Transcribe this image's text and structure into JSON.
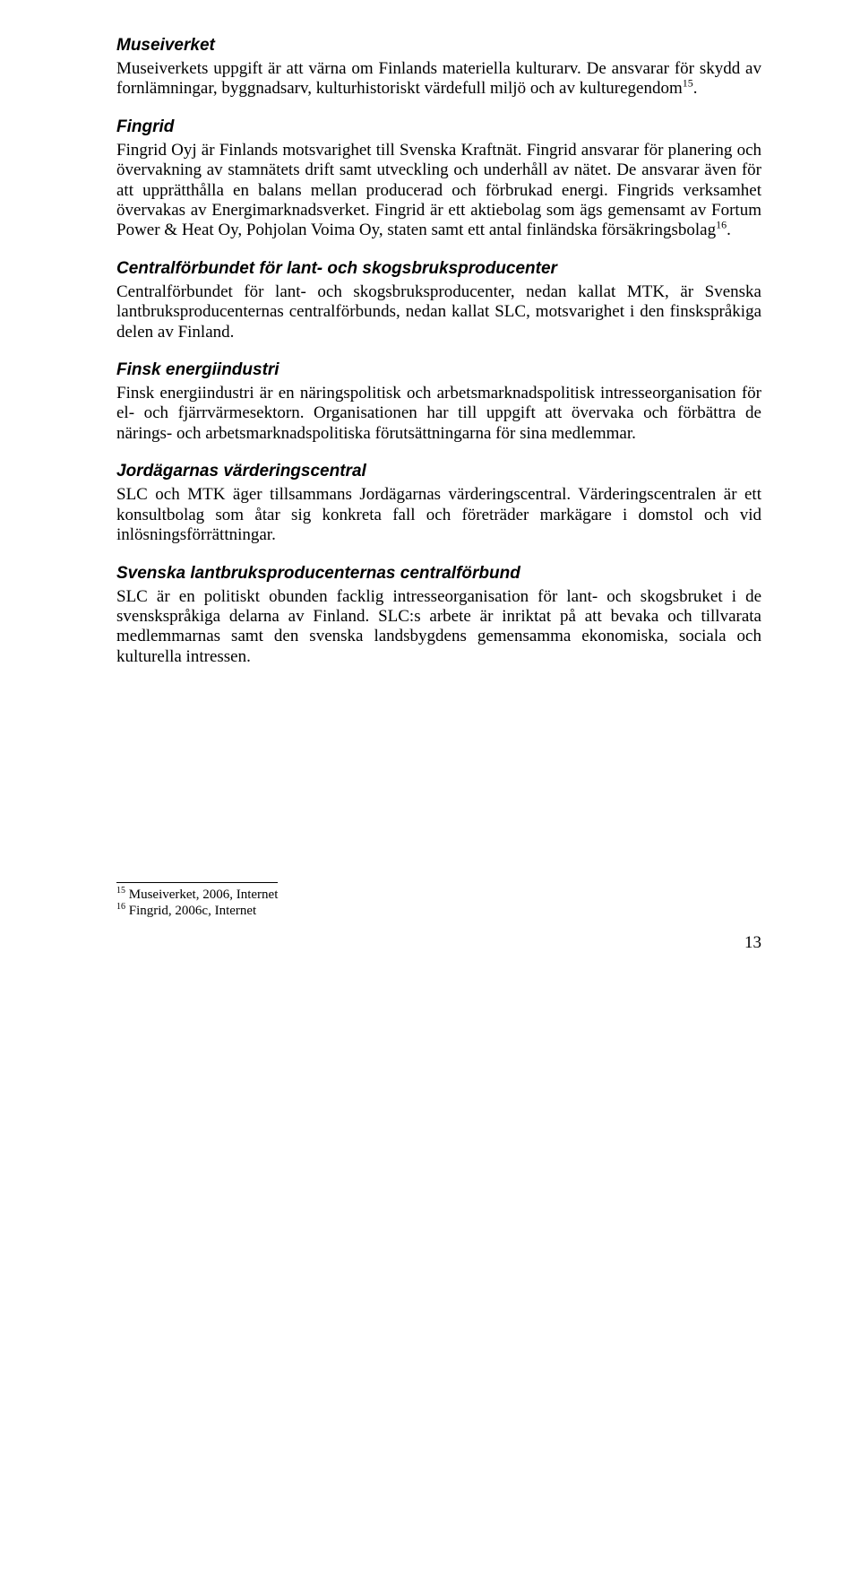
{
  "sections": [
    {
      "heading": "Museiverket",
      "body": "Museiverkets uppgift är att värna om Finlands materiella kulturarv. De ansvarar för skydd av fornlämningar, byggnadsarv, kulturhistoriskt värdefull miljö och av kulturegendom",
      "sup": "15",
      "body_tail": "."
    },
    {
      "heading": "Fingrid",
      "body": "Fingrid Oyj är Finlands motsvarighet till Svenska Kraftnät. Fingrid ansvarar för planering och övervakning av stamnätets drift samt utveckling och underhåll av nätet. De ansvarar även för att upprätthålla en balans mellan producerad och förbrukad energi. Fingrids verksamhet övervakas av Energimarknadsverket. Fingrid är ett aktiebolag som ägs gemensamt av Fortum Power & Heat Oy, Pohjolan Voima Oy, staten samt ett antal finländska försäkringsbolag",
      "sup": "16",
      "body_tail": "."
    },
    {
      "heading": "Centralförbundet för lant- och skogsbruksproducenter",
      "body": "Centralförbundet för lant- och skogsbruksproducenter, nedan kallat MTK, är Svenska lantbruksproducenternas centralförbunds, nedan kallat SLC, motsvarighet i den finskspråkiga delen av Finland."
    },
    {
      "heading": "Finsk energiindustri",
      "body": "Finsk energiindustri är en näringspolitisk och arbetsmarknadspolitisk intresseorganisation för el- och fjärrvärmesektorn. Organisationen har till uppgift att övervaka och förbättra de närings- och arbetsmarknadspolitiska förutsättningarna för sina medlemmar."
    },
    {
      "heading": "Jordägarnas värderingscentral",
      "body": "SLC och MTK äger tillsammans Jordägarnas värderingscentral. Värderingscentralen är ett konsultbolag som åtar sig konkreta fall och företräder markägare i domstol och vid inlösningsförrättningar."
    },
    {
      "heading": "Svenska lantbruksproducenternas centralförbund",
      "body": "SLC är en politiskt obunden facklig intresseorganisation för lant- och skogsbruket i de svenskspråkiga delarna av Finland. SLC:s arbete är inriktat på att bevaka och tillvarata medlemmarnas samt den svenska landsbygdens gemensamma ekonomiska, sociala och kulturella intressen."
    }
  ],
  "footnotes": [
    {
      "num": "15",
      "text": " Museiverket, 2006, Internet"
    },
    {
      "num": "16",
      "text": " Fingrid, 2006c, Internet"
    }
  ],
  "page_number": "13"
}
